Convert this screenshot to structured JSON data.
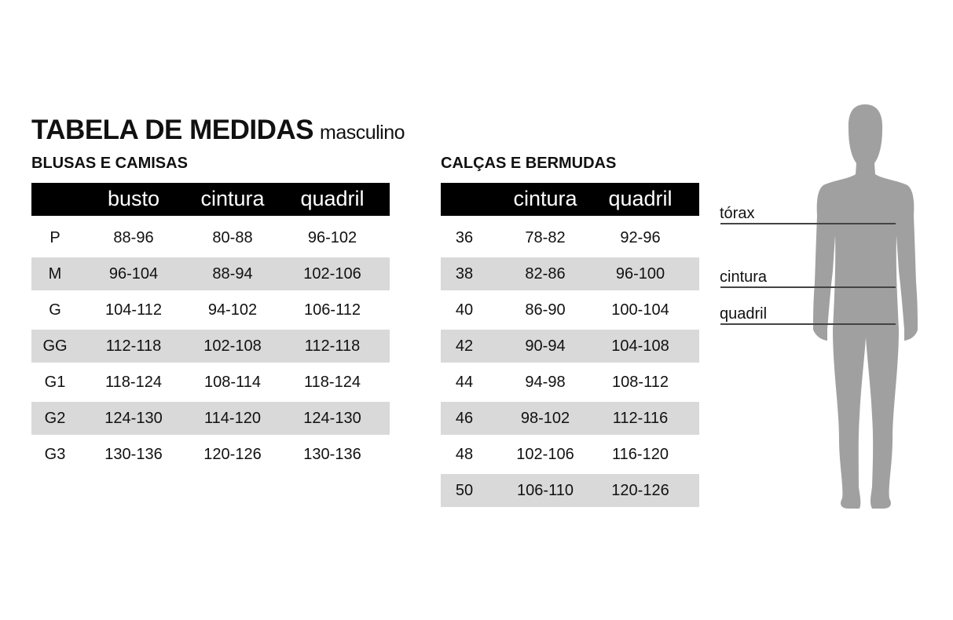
{
  "title": {
    "main": "TABELA DE MEDIDAS",
    "sub": "masculino"
  },
  "shirts": {
    "heading": "BLUSAS E CAMISAS",
    "columns": [
      "",
      "busto",
      "cintura",
      "quadril"
    ],
    "rows": [
      [
        "P",
        "88-96",
        "80-88",
        "96-102"
      ],
      [
        "M",
        "96-104",
        "88-94",
        "102-106"
      ],
      [
        "G",
        "104-112",
        "94-102",
        "106-112"
      ],
      [
        "GG",
        "112-118",
        "102-108",
        "112-118"
      ],
      [
        "G1",
        "118-124",
        "108-114",
        "118-124"
      ],
      [
        "G2",
        "124-130",
        "114-120",
        "124-130"
      ],
      [
        "G3",
        "130-136",
        "120-126",
        "130-136"
      ]
    ]
  },
  "pants": {
    "heading": "CALÇAS E BERMUDAS",
    "columns": [
      "",
      "cintura",
      "quadril"
    ],
    "rows": [
      [
        "36",
        "78-82",
        "92-96"
      ],
      [
        "38",
        "82-86",
        "96-100"
      ],
      [
        "40",
        "86-90",
        "100-104"
      ],
      [
        "42",
        "90-94",
        "104-108"
      ],
      [
        "44",
        "94-98",
        "108-112"
      ],
      [
        "46",
        "98-102",
        "112-116"
      ],
      [
        "48",
        "102-106",
        "116-120"
      ],
      [
        "50",
        "106-110",
        "120-126"
      ]
    ]
  },
  "figure": {
    "labels": [
      "tórax",
      "cintura",
      "quadril"
    ],
    "silhouette_color": "#a0a0a0",
    "line_color": "#444444",
    "stripe_color": "#d9d9d9"
  }
}
